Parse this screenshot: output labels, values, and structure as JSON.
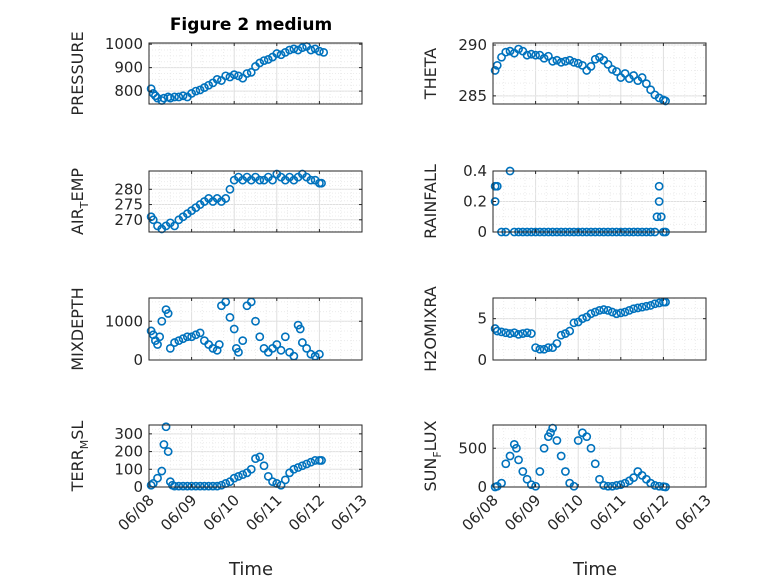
{
  "title": "Figure 2 medium",
  "xlabel": "Time",
  "x_ticks": [
    "06/08",
    "06/09",
    "06/10",
    "06/11",
    "06/12",
    "06/13"
  ],
  "colors": {
    "marker": "#0072BD",
    "axis": "#262626",
    "grid": "#dfdfdf"
  },
  "chart_data": [
    {
      "id": "pressure",
      "type": "scatter",
      "ylabel": "PRESSURE",
      "ylim": [
        745,
        1005
      ],
      "yticks": [
        800,
        900,
        1000
      ],
      "grid": true,
      "x": [
        0.05,
        0.1,
        0.15,
        0.2,
        0.3,
        0.35,
        0.45,
        0.5,
        0.6,
        0.7,
        0.8,
        0.9,
        1.0,
        1.1,
        1.2,
        1.3,
        1.4,
        1.5,
        1.6,
        1.7,
        1.8,
        1.9,
        2.0,
        2.1,
        2.2,
        2.3,
        2.4,
        2.5,
        2.6,
        2.7,
        2.8,
        2.9,
        3.0,
        3.1,
        3.2,
        3.3,
        3.4,
        3.5,
        3.6,
        3.7,
        3.8,
        3.9,
        4.0,
        4.1
      ],
      "y": [
        810,
        790,
        780,
        770,
        760,
        770,
        775,
        770,
        775,
        775,
        780,
        775,
        790,
        800,
        805,
        815,
        825,
        835,
        850,
        845,
        865,
        860,
        870,
        865,
        855,
        875,
        880,
        905,
        920,
        930,
        935,
        945,
        960,
        955,
        965,
        975,
        980,
        975,
        985,
        990,
        975,
        980,
        970,
        965
      ]
    },
    {
      "id": "theta",
      "type": "scatter",
      "ylabel": "THETA",
      "ylim": [
        284.2,
        290.2
      ],
      "yticks": [
        285,
        290
      ],
      "grid": true,
      "x": [
        0.05,
        0.1,
        0.2,
        0.3,
        0.4,
        0.5,
        0.6,
        0.7,
        0.8,
        0.9,
        1.0,
        1.1,
        1.2,
        1.3,
        1.4,
        1.5,
        1.6,
        1.7,
        1.8,
        1.9,
        2.0,
        2.1,
        2.2,
        2.3,
        2.4,
        2.5,
        2.6,
        2.7,
        2.8,
        2.9,
        3.0,
        3.1,
        3.2,
        3.3,
        3.4,
        3.5,
        3.6,
        3.7,
        3.8,
        3.9,
        4.0,
        4.05
      ],
      "y": [
        287.5,
        288,
        288.8,
        289.3,
        289.4,
        289.2,
        289.6,
        289.4,
        289.0,
        289.1,
        289.0,
        289.0,
        288.7,
        288.9,
        288.4,
        288.5,
        288.3,
        288.4,
        288.5,
        288.3,
        288.2,
        288.0,
        287.5,
        287.9,
        288.6,
        288.8,
        288.5,
        288.1,
        287.6,
        287.4,
        286.8,
        287.2,
        286.7,
        287.0,
        286.5,
        286.8,
        286.2,
        285.6,
        285.1,
        284.8,
        284.6,
        284.5
      ]
    },
    {
      "id": "air_temp",
      "type": "scatter",
      "ylabel_main": "AIR",
      "ylabel_sub": "T",
      "ylabel_rest": "EMP",
      "ylim": [
        266,
        286
      ],
      "yticks": [
        270,
        275,
        280
      ],
      "grid": true,
      "x": [
        0.05,
        0.1,
        0.2,
        0.3,
        0.4,
        0.5,
        0.6,
        0.7,
        0.8,
        0.9,
        1.0,
        1.1,
        1.2,
        1.3,
        1.4,
        1.5,
        1.6,
        1.7,
        1.8,
        1.9,
        2.0,
        2.1,
        2.2,
        2.3,
        2.4,
        2.5,
        2.6,
        2.7,
        2.8,
        2.9,
        3.0,
        3.1,
        3.2,
        3.3,
        3.4,
        3.5,
        3.6,
        3.7,
        3.8,
        3.9,
        4.0,
        4.05
      ],
      "y": [
        271,
        270,
        268,
        267,
        268,
        269,
        268,
        270,
        271,
        272,
        273,
        274,
        275,
        276,
        277,
        276,
        277,
        276,
        277,
        280,
        283,
        284,
        283,
        284,
        283,
        284,
        283,
        283,
        284,
        283,
        285,
        284,
        283,
        284,
        283,
        284,
        285,
        284,
        283,
        283,
        282,
        282
      ]
    },
    {
      "id": "rainfall",
      "type": "scatter",
      "ylabel": "RAINFALL",
      "ylim": [
        0,
        0.4
      ],
      "yticks": [
        0,
        0.2,
        0.4
      ],
      "ytick_labels": [
        "0",
        "0.2",
        "0.4"
      ],
      "grid": true,
      "x": [
        0.05,
        0.05,
        0.1,
        0.2,
        0.3,
        0.4,
        0.5,
        0.6,
        0.7,
        0.8,
        0.9,
        1.0,
        1.1,
        1.2,
        1.3,
        1.4,
        1.5,
        1.6,
        1.7,
        1.8,
        1.9,
        2.0,
        2.1,
        2.2,
        2.3,
        2.4,
        2.5,
        2.6,
        2.7,
        2.8,
        2.9,
        3.0,
        3.1,
        3.2,
        3.3,
        3.4,
        3.5,
        3.6,
        3.7,
        3.8,
        3.85,
        3.9,
        3.9,
        3.95,
        4.0,
        4.05
      ],
      "y": [
        0.3,
        0.2,
        0.3,
        0,
        0,
        0.4,
        0,
        0,
        0,
        0,
        0,
        0,
        0,
        0,
        0,
        0,
        0,
        0,
        0,
        0,
        0,
        0,
        0,
        0,
        0,
        0,
        0,
        0,
        0,
        0,
        0,
        0,
        0,
        0,
        0,
        0,
        0,
        0,
        0,
        0,
        0.1,
        0.3,
        0.2,
        0.1,
        0,
        0
      ]
    },
    {
      "id": "mixdepth",
      "type": "scatter",
      "ylabel": "MIXDEPTH",
      "ylim": [
        0,
        1600
      ],
      "yticks": [
        0,
        1000
      ],
      "grid": true,
      "x": [
        0.05,
        0.1,
        0.15,
        0.2,
        0.25,
        0.3,
        0.4,
        0.45,
        0.5,
        0.6,
        0.7,
        0.8,
        0.9,
        1.0,
        1.1,
        1.2,
        1.3,
        1.4,
        1.5,
        1.6,
        1.65,
        1.7,
        1.8,
        1.9,
        2.0,
        2.05,
        2.1,
        2.2,
        2.3,
        2.4,
        2.5,
        2.6,
        2.7,
        2.8,
        2.9,
        3.0,
        3.1,
        3.2,
        3.3,
        3.4,
        3.5,
        3.55,
        3.6,
        3.7,
        3.8,
        3.9,
        4.0
      ],
      "y": [
        750,
        650,
        500,
        400,
        600,
        1000,
        1300,
        1200,
        300,
        450,
        500,
        550,
        600,
        600,
        650,
        700,
        500,
        400,
        300,
        250,
        400,
        1400,
        1500,
        1100,
        800,
        300,
        200,
        500,
        1400,
        1500,
        1000,
        600,
        300,
        200,
        300,
        400,
        250,
        600,
        200,
        100,
        900,
        800,
        450,
        300,
        150,
        100,
        150
      ]
    },
    {
      "id": "h2omixra",
      "type": "scatter",
      "ylabel": "H2OMIXRA",
      "ylim": [
        0,
        7.5
      ],
      "yticks": [
        0,
        5
      ],
      "grid": true,
      "x": [
        0.05,
        0.1,
        0.2,
        0.3,
        0.4,
        0.5,
        0.6,
        0.7,
        0.8,
        0.9,
        1.0,
        1.1,
        1.2,
        1.3,
        1.4,
        1.5,
        1.6,
        1.7,
        1.8,
        1.9,
        2.0,
        2.1,
        2.2,
        2.3,
        2.4,
        2.5,
        2.6,
        2.7,
        2.8,
        2.9,
        3.0,
        3.1,
        3.2,
        3.3,
        3.4,
        3.5,
        3.6,
        3.7,
        3.8,
        3.9,
        4.0,
        4.05
      ],
      "y": [
        3.8,
        3.5,
        3.4,
        3.3,
        3.2,
        3.3,
        3.1,
        3.2,
        3.3,
        3.2,
        1.5,
        1.3,
        1.3,
        1.5,
        1.5,
        2.0,
        3.0,
        3.2,
        3.5,
        4.5,
        4.6,
        5.0,
        5.2,
        5.6,
        5.8,
        6.0,
        6.1,
        6.0,
        5.8,
        5.6,
        5.7,
        5.8,
        6.0,
        6.2,
        6.3,
        6.4,
        6.5,
        6.6,
        6.8,
        6.9,
        7.0,
        7.0
      ]
    },
    {
      "id": "terr_msl",
      "type": "scatter",
      "ylabel_main": "TERR",
      "ylabel_sub": "M",
      "ylabel_rest": "SL",
      "ylim": [
        0,
        350
      ],
      "yticks": [
        0,
        100,
        200,
        300
      ],
      "grid": true,
      "x": [
        0.05,
        0.1,
        0.2,
        0.3,
        0.35,
        0.4,
        0.45,
        0.5,
        0.55,
        0.6,
        0.7,
        0.8,
        0.9,
        1.0,
        1.1,
        1.2,
        1.3,
        1.4,
        1.5,
        1.6,
        1.7,
        1.8,
        1.9,
        2.0,
        2.1,
        2.2,
        2.3,
        2.4,
        2.5,
        2.6,
        2.7,
        2.8,
        2.9,
        3.0,
        3.1,
        3.2,
        3.3,
        3.4,
        3.5,
        3.6,
        3.7,
        3.8,
        3.9,
        4.0,
        4.05
      ],
      "y": [
        10,
        20,
        50,
        90,
        240,
        340,
        200,
        30,
        10,
        5,
        5,
        5,
        5,
        5,
        5,
        5,
        5,
        5,
        5,
        5,
        10,
        20,
        30,
        50,
        60,
        70,
        80,
        100,
        160,
        170,
        120,
        60,
        30,
        20,
        10,
        40,
        80,
        100,
        110,
        120,
        130,
        140,
        150,
        150,
        150
      ]
    },
    {
      "id": "sun_flux",
      "type": "scatter",
      "ylabel_main": "SUN",
      "ylabel_sub": "F",
      "ylabel_rest": "LUX",
      "ylim": [
        0,
        800
      ],
      "yticks": [
        0,
        500
      ],
      "grid": true,
      "x": [
        0.05,
        0.1,
        0.2,
        0.3,
        0.4,
        0.5,
        0.55,
        0.6,
        0.7,
        0.8,
        0.9,
        1.0,
        1.1,
        1.2,
        1.3,
        1.35,
        1.4,
        1.5,
        1.6,
        1.7,
        1.8,
        1.9,
        2.0,
        2.1,
        2.2,
        2.3,
        2.4,
        2.5,
        2.6,
        2.7,
        2.8,
        2.9,
        3.0,
        3.1,
        3.2,
        3.3,
        3.4,
        3.5,
        3.6,
        3.7,
        3.8,
        3.9,
        4.0,
        4.05
      ],
      "y": [
        0,
        10,
        50,
        300,
        400,
        550,
        500,
        350,
        200,
        100,
        30,
        10,
        200,
        500,
        650,
        700,
        760,
        600,
        400,
        200,
        50,
        10,
        600,
        700,
        650,
        500,
        300,
        100,
        20,
        10,
        10,
        20,
        30,
        50,
        80,
        120,
        200,
        150,
        100,
        50,
        20,
        10,
        5,
        0
      ]
    }
  ]
}
